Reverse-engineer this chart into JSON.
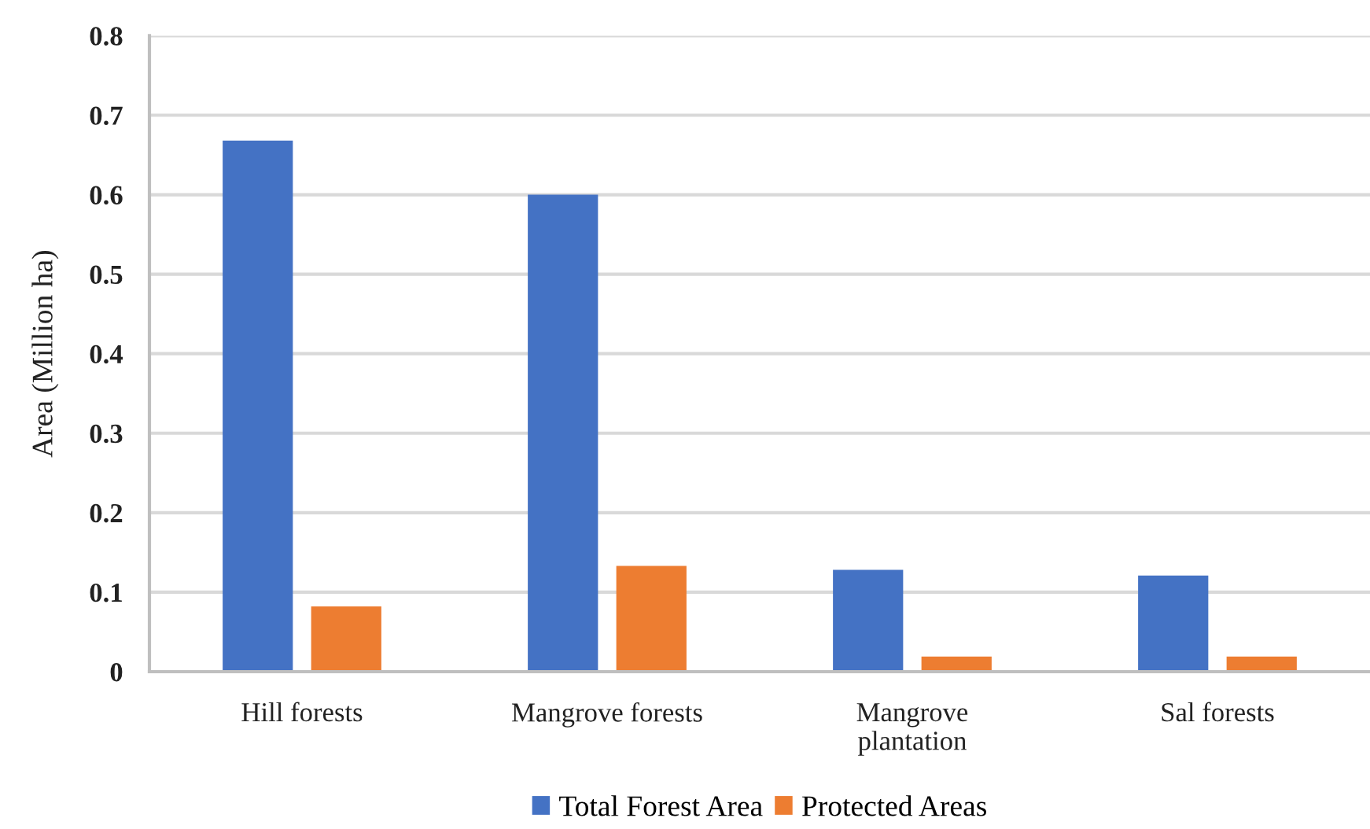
{
  "chart_data": {
    "type": "bar",
    "categories": [
      "Hill forests",
      "Mangrove forests",
      "Mangrove\nplantation",
      "Sal forests"
    ],
    "series": [
      {
        "name": "Total Forest Area",
        "color": "#4472c4",
        "values": [
          0.668,
          0.6,
          0.128,
          0.121
        ]
      },
      {
        "name": "Protected Areas",
        "color": "#ed7d31",
        "values": [
          0.082,
          0.133,
          0.019,
          0.019
        ]
      }
    ],
    "ylabel": "Area (Million ha)",
    "ylim": [
      0,
      0.8
    ],
    "yticks": [
      {
        "value": 0,
        "label": "0"
      },
      0.1,
      0.2,
      0.3,
      0.4,
      0.5,
      0.6,
      0.7,
      0.8
    ],
    "grid": "y",
    "legend": "bottom"
  }
}
